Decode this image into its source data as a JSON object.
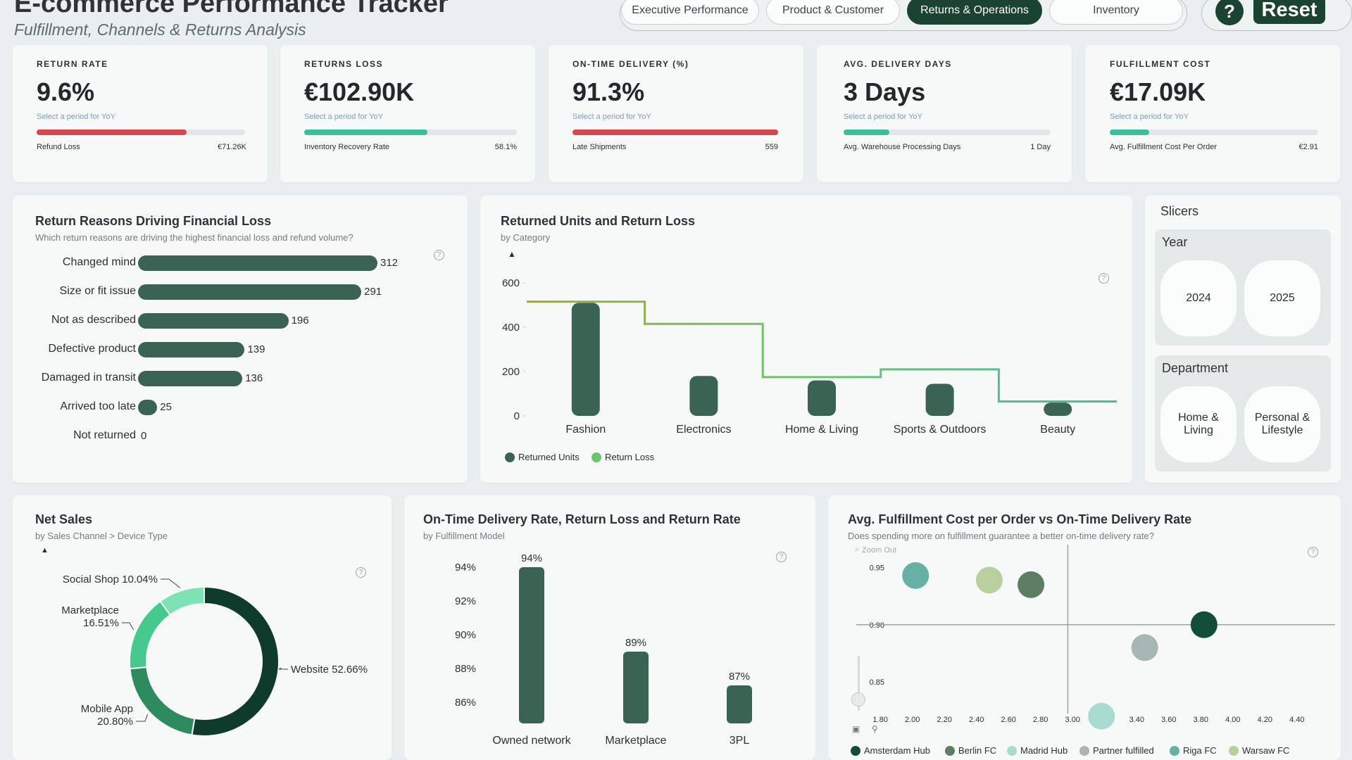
{
  "header": {
    "title": "E-commerce Performance Tracker",
    "subtitle": "Fulfillment, Channels & Returns Analysis",
    "tabs": [
      {
        "label": "Executive Performance",
        "active": false
      },
      {
        "label": "Product & Customer",
        "active": false
      },
      {
        "label": "Returns & Operations",
        "active": true
      },
      {
        "label": "Inventory",
        "active": false
      }
    ],
    "help_label": "?",
    "reset_label": "Reset"
  },
  "kpis": [
    {
      "label": "RETURN RATE",
      "value": "9.6%",
      "yoy": "Select a period for YoY",
      "sub_label": "Refund Loss",
      "sub_value": "€71.26K",
      "progress": 0.72,
      "bar_color": "#d9474e"
    },
    {
      "label": "RETURNS LOSS",
      "value": "€102.90K",
      "yoy": "Select a period for YoY",
      "sub_label": "Inventory Recovery Rate",
      "sub_value": "58.1%",
      "progress": 0.581,
      "bar_color": "#3bbf9b"
    },
    {
      "label": "ON-TIME DELIVERY (%)",
      "value": "91.3%",
      "yoy": "Select a period for YoY",
      "sub_label": "Late Shipments",
      "sub_value": "559",
      "progress": 1.0,
      "bar_color": "#d9474e"
    },
    {
      "label": "AVG. DELIVERY DAYS",
      "value": "3 Days",
      "yoy": "Select a period for YoY",
      "sub_label": "Avg. Warehouse Processing Days",
      "sub_value": "1 Day",
      "progress": 0.22,
      "bar_color": "#3bbf9b"
    },
    {
      "label": "FULFILLMENT COST",
      "value": "€17.09K",
      "yoy": "Select a period for YoY",
      "sub_label": "Avg. Fulfillment Cost Per Order",
      "sub_value": "€2.91",
      "progress": 0.19,
      "bar_color": "#3bbf9b"
    }
  ],
  "return_reasons": {
    "title": "Return Reasons Driving Financial Loss",
    "subtitle": "Which return reasons are driving the highest financial loss and refund volume?",
    "help": "?",
    "chart_data": {
      "type": "bar",
      "orientation": "horizontal",
      "categories": [
        "Changed mind",
        "Size or fit issue",
        "Not as described",
        "Defective product",
        "Damaged in transit",
        "Arrived too late",
        "Not returned"
      ],
      "values": [
        312,
        291,
        196,
        139,
        136,
        25,
        0
      ],
      "value_labels": [
        "312",
        "291",
        "196",
        "139",
        "136",
        "25",
        "0"
      ]
    }
  },
  "returned_units": {
    "title": "Returned Units and Return Loss",
    "subtitle": "by Category",
    "help": "?",
    "chart_data": {
      "type": "bar",
      "categories": [
        "Fashion",
        "Electronics",
        "Home & Living",
        "Sports & Outdoors",
        "Beauty"
      ],
      "series": [
        {
          "name": "Returned Units",
          "values": [
            510,
            180,
            160,
            145,
            60
          ],
          "color": "#3b6354"
        },
        {
          "name": "Return Loss",
          "values": [
            515,
            415,
            175,
            210,
            65
          ],
          "color": "#45c08e",
          "style": "step"
        }
      ],
      "yticks": [
        "0",
        "200",
        "400",
        "600"
      ],
      "ylim": [
        0,
        600
      ]
    }
  },
  "slicers": {
    "title": "Slicers",
    "year": {
      "title": "Year",
      "options": [
        "2024",
        "2025"
      ]
    },
    "department": {
      "title": "Department",
      "options": [
        "Home & Living",
        "Personal & Lifestyle"
      ]
    }
  },
  "net_sales": {
    "title": "Net Sales",
    "subtitle": "by Sales Channel > Device Type",
    "help": "?",
    "chart_data": {
      "type": "pie",
      "donut": true,
      "categories": [
        "Website",
        "Mobile App",
        "Marketplace",
        "Social Shop"
      ],
      "values": [
        52.66,
        20.8,
        16.51,
        10.04
      ],
      "labels": [
        "Website 52.66%",
        "Mobile App 20.80%",
        "Marketplace 16.51%",
        "Social Shop 10.04%"
      ],
      "label_lines": [
        [
          "Website 52.66%"
        ],
        [
          "Mobile App",
          "20.80%"
        ],
        [
          "Marketplace",
          "16.51%"
        ],
        [
          "Social Shop 10.04%"
        ]
      ],
      "colors": [
        "#0f3b2c",
        "#2e8a5f",
        "#45c98d",
        "#7ee3b4"
      ]
    }
  },
  "on_time": {
    "title": "On-Time Delivery Rate, Return Loss and Return Rate",
    "subtitle": "by Fulfillment Model",
    "help": "?",
    "chart_data": {
      "type": "bar",
      "categories": [
        "Owned network",
        "Marketplace",
        "3PL"
      ],
      "values": [
        94,
        89,
        87
      ],
      "value_labels": [
        "94%",
        "89%",
        "87%"
      ],
      "yticks": [
        "86%",
        "88%",
        "90%",
        "92%",
        "94%"
      ],
      "ylim": [
        85,
        94.5
      ]
    }
  },
  "fulfillment_cost": {
    "title": "Avg. Fulfillment Cost per Order vs On-Time Delivery Rate",
    "subtitle": "Does spending more on fulfillment guarantee a better on-time delivery rate?",
    "zoom_label": "Zoom Out",
    "help": "?",
    "chart_data": {
      "type": "scatter",
      "xticks": [
        "1.80",
        "2.00",
        "2.20",
        "2.40",
        "2.60",
        "2.80",
        "3.00",
        "3.20",
        "3.40",
        "3.60",
        "3.80",
        "4.00",
        "4.20",
        "4.40"
      ],
      "yticks": [
        "0.85",
        "0.90",
        "0.95"
      ],
      "xlim": [
        1.65,
        4.55
      ],
      "ylim": [
        0.81,
        0.97
      ],
      "ref_x": 2.97,
      "ref_y": 0.9,
      "points": [
        {
          "name": "Amsterdam Hub",
          "x": 3.82,
          "y": 0.9,
          "color": "#124c3a"
        },
        {
          "name": "Berlin FC",
          "x": 2.74,
          "y": 0.935,
          "color": "#5e7e63"
        },
        {
          "name": "Madrid Hub",
          "x": 3.18,
          "y": 0.82,
          "color": "#a8dcd0"
        },
        {
          "name": "Partner fulfilled",
          "x": 3.45,
          "y": 0.88,
          "color": "#a7b5b4"
        },
        {
          "name": "Riga FC",
          "x": 2.02,
          "y": 0.943,
          "color": "#66b0a6"
        },
        {
          "name": "Warsaw FC",
          "x": 2.48,
          "y": 0.939,
          "color": "#b8cf9e"
        }
      ],
      "legend": [
        "Amsterdam Hub",
        "Berlin FC",
        "Madrid Hub",
        "Partner fulfilled",
        "Riga FC",
        "Warsaw FC"
      ]
    }
  }
}
